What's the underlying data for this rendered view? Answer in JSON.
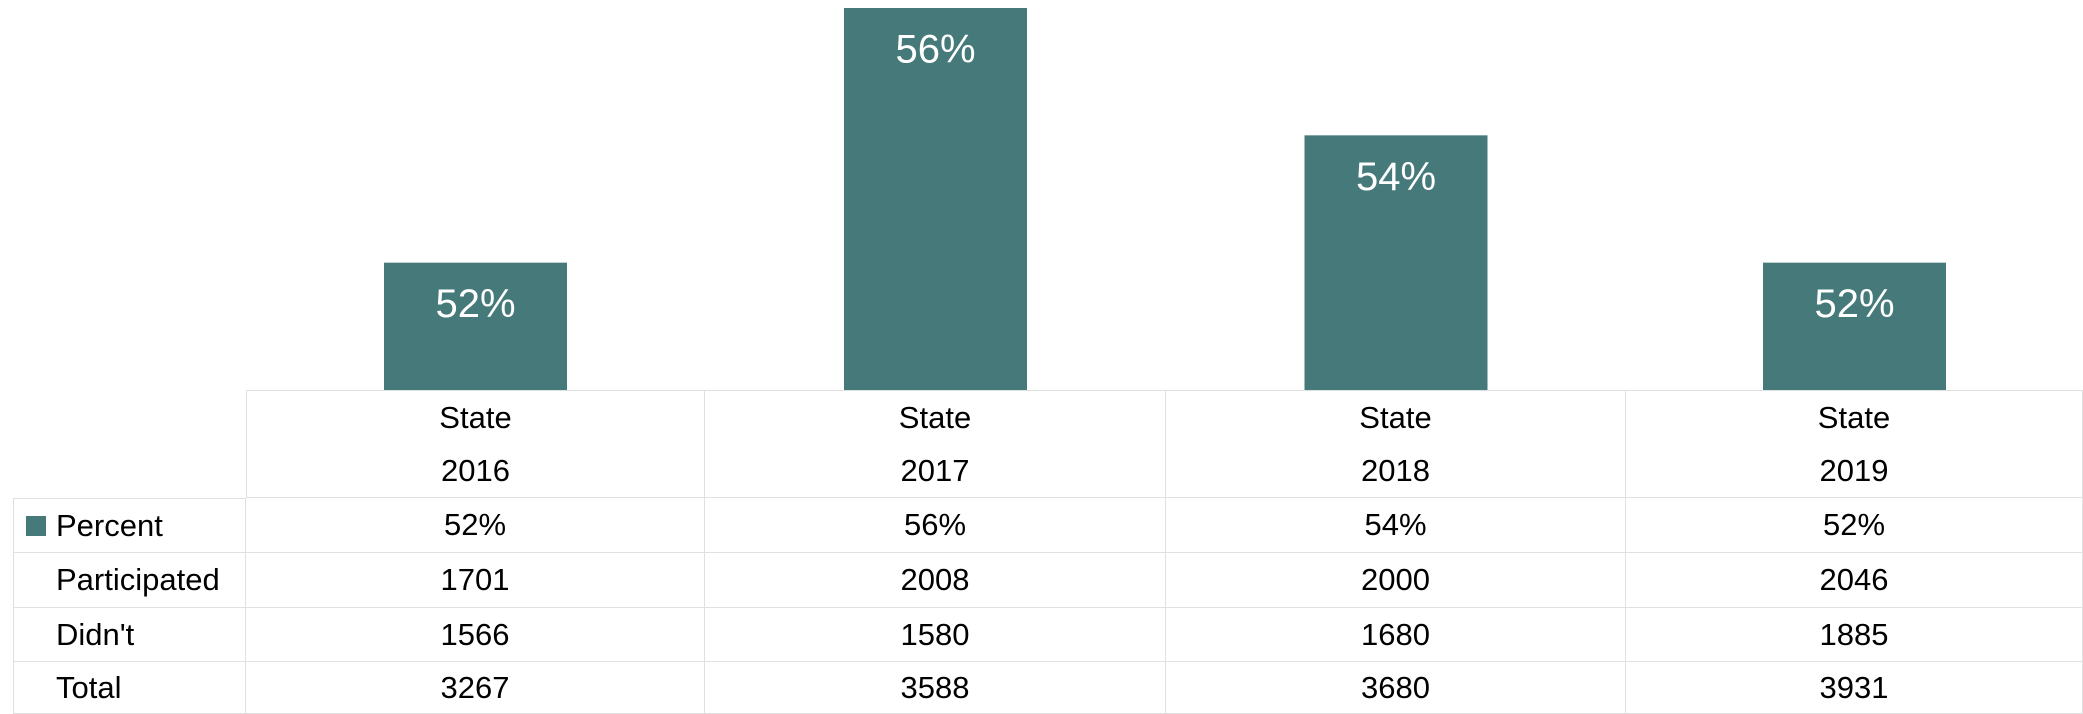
{
  "chart_data": {
    "type": "bar",
    "categories": [
      "State 2016",
      "State 2017",
      "State 2018",
      "State 2019"
    ],
    "series": [
      {
        "name": "Percent",
        "color": "#467a7a",
        "values": [
          52,
          56,
          54,
          52
        ],
        "value_labels": [
          "52%",
          "56%",
          "54%",
          "52%"
        ]
      }
    ],
    "ylim": [
      50,
      56
    ]
  },
  "table": {
    "rows": [
      {
        "label": "Participated",
        "values": [
          1701,
          2008,
          2000,
          2046
        ]
      },
      {
        "label": "Didn't",
        "values": [
          1566,
          1580,
          1680,
          1885
        ]
      },
      {
        "label": "Total",
        "values": [
          3267,
          3588,
          3680,
          3931
        ]
      }
    ]
  }
}
